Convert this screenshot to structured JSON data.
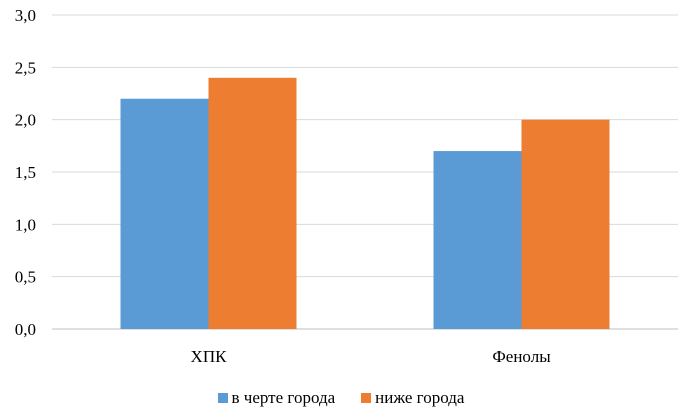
{
  "chart_data": {
    "type": "bar",
    "categories": [
      "ХПК",
      "Фенолы"
    ],
    "series": [
      {
        "name": "в черте города",
        "values": [
          2.2,
          1.7
        ],
        "color": "#5b9bd5"
      },
      {
        "name": "ниже города",
        "values": [
          2.4,
          2.0
        ],
        "color": "#ed7d31"
      }
    ],
    "ylim": [
      0,
      3.0
    ],
    "yticks": [
      "0,0",
      "0,5",
      "1,0",
      "1,5",
      "2,0",
      "2,5",
      "3,0"
    ],
    "grid": true,
    "legend_position": "bottom"
  }
}
